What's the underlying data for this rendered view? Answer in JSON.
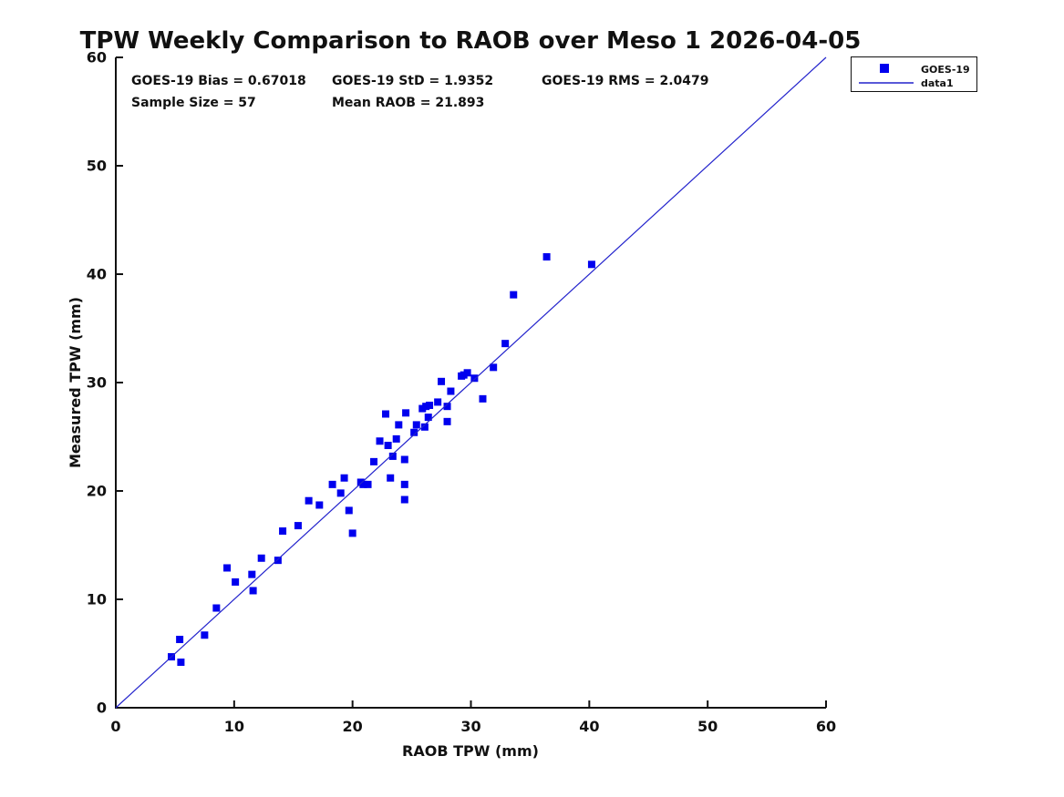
{
  "chart_data": {
    "type": "scatter",
    "title": "TPW Weekly Comparison to RAOB over Meso 1 2026-04-05",
    "xlabel": "RAOB TPW (mm)",
    "ylabel": "Measured TPW (mm)",
    "xlim": [
      0,
      60
    ],
    "ylim": [
      0,
      60
    ],
    "xticks": [
      0,
      10,
      20,
      30,
      40,
      50,
      60
    ],
    "yticks": [
      0,
      10,
      20,
      30,
      40,
      50,
      60
    ],
    "grid": false,
    "legend_position": "outside-top-right",
    "colors": {
      "marker": "#0000ee",
      "line": "#2222cc",
      "axis": "#111111"
    },
    "annotations": [
      "GOES-19 Bias = 0.67018",
      "GOES-19 StD = 1.9352",
      "GOES-19 RMS = 2.0479",
      "Sample Size = 57",
      "Mean RAOB = 21.893"
    ],
    "series": [
      {
        "name": "GOES-19",
        "type": "scatter",
        "marker": "square",
        "color": "#0000ee",
        "points": [
          [
            4.7,
            4.7
          ],
          [
            5.5,
            4.2
          ],
          [
            5.4,
            6.3
          ],
          [
            7.5,
            6.7
          ],
          [
            8.5,
            9.2
          ],
          [
            9.4,
            12.9
          ],
          [
            10.1,
            11.6
          ],
          [
            11.5,
            12.3
          ],
          [
            11.6,
            10.8
          ],
          [
            12.3,
            13.8
          ],
          [
            13.7,
            13.6
          ],
          [
            14.1,
            16.3
          ],
          [
            15.4,
            16.8
          ],
          [
            16.3,
            19.1
          ],
          [
            17.2,
            18.7
          ],
          [
            18.3,
            20.6
          ],
          [
            19.0,
            19.8
          ],
          [
            19.3,
            21.2
          ],
          [
            19.7,
            18.2
          ],
          [
            20.0,
            16.1
          ],
          [
            20.7,
            20.8
          ],
          [
            20.9,
            20.6
          ],
          [
            21.3,
            20.6
          ],
          [
            21.8,
            22.7
          ],
          [
            22.3,
            24.6
          ],
          [
            22.8,
            27.1
          ],
          [
            23.0,
            24.2
          ],
          [
            23.2,
            21.2
          ],
          [
            23.4,
            23.2
          ],
          [
            23.7,
            24.8
          ],
          [
            23.9,
            26.1
          ],
          [
            24.4,
            22.9
          ],
          [
            24.4,
            20.6
          ],
          [
            24.4,
            19.2
          ],
          [
            24.5,
            27.2
          ],
          [
            25.2,
            25.4
          ],
          [
            25.4,
            26.1
          ],
          [
            25.9,
            27.6
          ],
          [
            26.1,
            25.9
          ],
          [
            26.2,
            27.8
          ],
          [
            26.4,
            26.8
          ],
          [
            26.5,
            27.9
          ],
          [
            27.2,
            28.2
          ],
          [
            27.5,
            30.1
          ],
          [
            28.0,
            27.8
          ],
          [
            28.0,
            26.4
          ],
          [
            28.3,
            29.2
          ],
          [
            29.2,
            30.6
          ],
          [
            29.4,
            30.7
          ],
          [
            29.7,
            30.9
          ],
          [
            30.3,
            30.4
          ],
          [
            31.0,
            28.5
          ],
          [
            31.9,
            31.4
          ],
          [
            32.9,
            33.6
          ],
          [
            33.6,
            38.1
          ],
          [
            36.4,
            41.6
          ],
          [
            40.2,
            40.9
          ]
        ]
      },
      {
        "name": "data1",
        "type": "line",
        "color": "#2222cc",
        "points": [
          [
            0,
            0
          ],
          [
            60,
            60
          ]
        ]
      }
    ]
  }
}
